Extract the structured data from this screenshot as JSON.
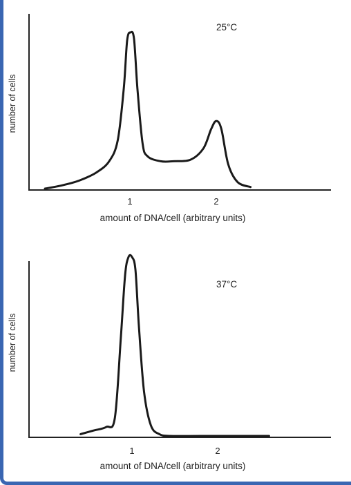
{
  "chart_data": [
    {
      "type": "line",
      "title": "",
      "annotation": "25°C",
      "xlabel": "amount of DNA/cell (arbitrary units)",
      "ylabel": "number of cells",
      "x_ticks": [
        "1",
        "2"
      ],
      "xlim": [
        0,
        3.25
      ],
      "ylim": [
        0,
        1.0
      ],
      "y_ticks": [],
      "grid": false,
      "series": [
        {
          "x": [
            0.0,
            0.2,
            0.4,
            0.6,
            0.75,
            0.85,
            0.92,
            0.96,
            1.0,
            1.04,
            1.08,
            1.14,
            1.2,
            1.35,
            1.5,
            1.7,
            1.85,
            1.94,
            2.0,
            2.06,
            2.14,
            2.25,
            2.4
          ],
          "y": [
            0.0,
            0.02,
            0.05,
            0.1,
            0.17,
            0.3,
            0.62,
            0.92,
            0.97,
            0.93,
            0.62,
            0.28,
            0.2,
            0.17,
            0.17,
            0.18,
            0.25,
            0.37,
            0.42,
            0.37,
            0.15,
            0.04,
            0.01
          ]
        }
      ]
    },
    {
      "type": "line",
      "title": "",
      "annotation": "37°C",
      "xlabel": "amount of DNA/cell (arbitrary units)",
      "ylabel": "number of cells",
      "x_ticks": [
        "1",
        "2"
      ],
      "xlim": [
        0,
        3.25
      ],
      "ylim": [
        0,
        1.0
      ],
      "y_ticks": [],
      "grid": false,
      "series": [
        {
          "x": [
            0.4,
            0.55,
            0.7,
            0.8,
            0.87,
            0.92,
            0.96,
            1.0,
            1.04,
            1.08,
            1.14,
            1.22,
            1.32,
            1.45,
            1.8,
            2.2,
            2.6
          ],
          "y": [
            0.01,
            0.03,
            0.05,
            0.1,
            0.55,
            0.9,
            1.0,
            1.0,
            0.93,
            0.62,
            0.25,
            0.06,
            0.01,
            0.0,
            0.0,
            0.0,
            0.0
          ]
        }
      ]
    }
  ]
}
